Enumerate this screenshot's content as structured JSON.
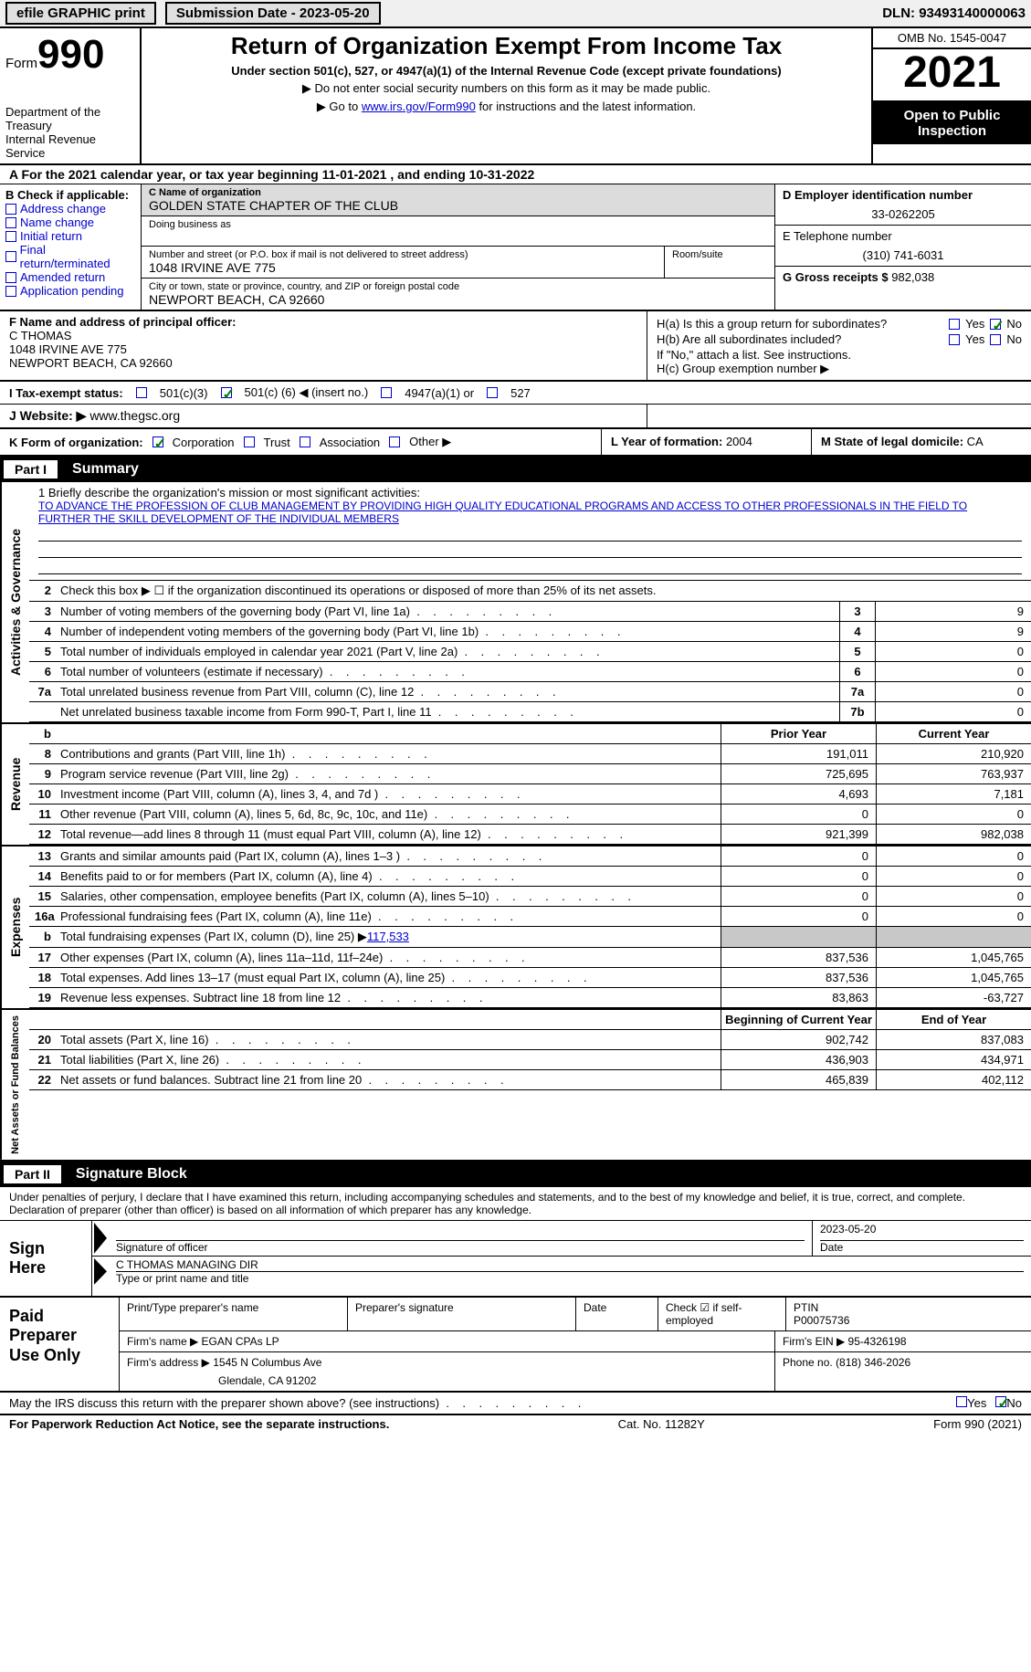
{
  "top": {
    "efile": "efile GRAPHIC print",
    "submission": "Submission Date - 2023-05-20",
    "dln": "DLN: 93493140000063"
  },
  "header": {
    "form_label": "Form",
    "form_num": "990",
    "dept": "Department of the Treasury",
    "irs": "Internal Revenue Service",
    "title": "Return of Organization Exempt From Income Tax",
    "subtitle": "Under section 501(c), 527, or 4947(a)(1) of the Internal Revenue Code (except private foundations)",
    "instr1": "▶ Do not enter social security numbers on this form as it may be made public.",
    "instr2_pre": "▶ Go to ",
    "instr2_link": "www.irs.gov/Form990",
    "instr2_post": " for instructions and the latest information.",
    "omb": "OMB No. 1545-0047",
    "year": "2021",
    "open": "Open to Public Inspection"
  },
  "line_a": "A For the 2021 calendar year, or tax year beginning 11-01-2021    , and ending 10-31-2022",
  "sec_b": {
    "title": "B Check if applicable:",
    "addr": "Address change",
    "name": "Name change",
    "initial": "Initial return",
    "final": "Final return/terminated",
    "amended": "Amended return",
    "app": "Application pending"
  },
  "sec_c": {
    "name_lbl": "C Name of organization",
    "name": "GOLDEN STATE CHAPTER OF THE CLUB",
    "dba_lbl": "Doing business as",
    "addr_lbl": "Number and street (or P.O. box if mail is not delivered to street address)",
    "addr": "1048 IRVINE AVE 775",
    "room_lbl": "Room/suite",
    "city_lbl": "City or town, state or province, country, and ZIP or foreign postal code",
    "city": "NEWPORT BEACH, CA   92660"
  },
  "sec_d": {
    "ein_lbl": "D Employer identification number",
    "ein": "33-0262205",
    "tel_lbl": "E Telephone number",
    "tel": "(310) 741-6031",
    "gross_lbl": "G Gross receipts $",
    "gross": "982,038"
  },
  "sec_f": {
    "lbl": "F Name and address of principal officer:",
    "name": "C THOMAS",
    "addr1": "1048 IRVINE AVE 775",
    "addr2": "NEWPORT BEACH, CA   92660"
  },
  "sec_h": {
    "ha": "H(a)  Is this a group return for subordinates?",
    "hb": "H(b)  Are all subordinates included?",
    "hb_note": "If \"No,\" attach a list. See instructions.",
    "hc": "H(c)  Group exemption number ▶",
    "yes": "Yes",
    "no": "No"
  },
  "tax_status": {
    "lbl": "I   Tax-exempt status:",
    "c3": "501(c)(3)",
    "c": "501(c) (",
    "cn": "6",
    "cpost": ") ◀ (insert no.)",
    "a1": "4947(a)(1) or",
    "s527": "527"
  },
  "website": {
    "lbl": "J   Website: ▶",
    "val": "www.thegsc.org"
  },
  "sec_k": {
    "lbl": "K Form of organization:",
    "corp": "Corporation",
    "trust": "Trust",
    "assoc": "Association",
    "other": "Other ▶"
  },
  "sec_l": {
    "lbl": "L Year of formation:",
    "val": "2004"
  },
  "sec_m": {
    "lbl": "M State of legal domicile:",
    "val": "CA"
  },
  "part1": {
    "num": "Part I",
    "title": "Summary"
  },
  "side": {
    "ag": "Activities & Governance",
    "rev": "Revenue",
    "exp": "Expenses",
    "na": "Net Assets or Fund Balances"
  },
  "mission": {
    "lbl": "1   Briefly describe the organization's mission or most significant activities:",
    "text": "TO ADVANCE THE PROFESSION OF CLUB MANAGEMENT BY PROVIDING HIGH QUALITY EDUCATIONAL PROGRAMS AND ACCESS TO OTHER PROFESSIONALS IN THE FIELD TO FURTHER THE SKILL DEVELOPMENT OF THE INDIVIDUAL MEMBERS"
  },
  "l2": "Check this box ▶ ☐ if the organization discontinued its operations or disposed of more than 25% of its net assets.",
  "rows_ag": [
    {
      "n": "3",
      "t": "Number of voting members of the governing body (Part VI, line 1a)",
      "box": "3",
      "v": "9"
    },
    {
      "n": "4",
      "t": "Number of independent voting members of the governing body (Part VI, line 1b)",
      "box": "4",
      "v": "9"
    },
    {
      "n": "5",
      "t": "Total number of individuals employed in calendar year 2021 (Part V, line 2a)",
      "box": "5",
      "v": "0"
    },
    {
      "n": "6",
      "t": "Total number of volunteers (estimate if necessary)",
      "box": "6",
      "v": "0"
    },
    {
      "n": "7a",
      "t": "Total unrelated business revenue from Part VIII, column (C), line 12",
      "box": "7a",
      "v": "0"
    },
    {
      "n": "",
      "t": "Net unrelated business taxable income from Form 990-T, Part I, line 11",
      "box": "7b",
      "v": "0"
    }
  ],
  "col_hdr": {
    "prior": "Prior Year",
    "current": "Current Year",
    "beg": "Beginning of Current Year",
    "end": "End of Year"
  },
  "rows_rev": [
    {
      "n": "8",
      "t": "Contributions and grants (Part VIII, line 1h)",
      "p": "191,011",
      "c": "210,920"
    },
    {
      "n": "9",
      "t": "Program service revenue (Part VIII, line 2g)",
      "p": "725,695",
      "c": "763,937"
    },
    {
      "n": "10",
      "t": "Investment income (Part VIII, column (A), lines 3, 4, and 7d )",
      "p": "4,693",
      "c": "7,181"
    },
    {
      "n": "11",
      "t": "Other revenue (Part VIII, column (A), lines 5, 6d, 8c, 9c, 10c, and 11e)",
      "p": "0",
      "c": "0"
    },
    {
      "n": "12",
      "t": "Total revenue—add lines 8 through 11 (must equal Part VIII, column (A), line 12)",
      "p": "921,399",
      "c": "982,038"
    }
  ],
  "rows_exp": [
    {
      "n": "13",
      "t": "Grants and similar amounts paid (Part IX, column (A), lines 1–3 )",
      "p": "0",
      "c": "0"
    },
    {
      "n": "14",
      "t": "Benefits paid to or for members (Part IX, column (A), line 4)",
      "p": "0",
      "c": "0"
    },
    {
      "n": "15",
      "t": "Salaries, other compensation, employee benefits (Part IX, column (A), lines 5–10)",
      "p": "0",
      "c": "0"
    },
    {
      "n": "16a",
      "t": "Professional fundraising fees (Part IX, column (A), line 11e)",
      "p": "0",
      "c": "0"
    }
  ],
  "l16b": {
    "n": "b",
    "t": "Total fundraising expenses (Part IX, column (D), line 25) ▶",
    "v": "117,533"
  },
  "rows_exp2": [
    {
      "n": "17",
      "t": "Other expenses (Part IX, column (A), lines 11a–11d, 11f–24e)",
      "p": "837,536",
      "c": "1,045,765"
    },
    {
      "n": "18",
      "t": "Total expenses. Add lines 13–17 (must equal Part IX, column (A), line 25)",
      "p": "837,536",
      "c": "1,045,765"
    },
    {
      "n": "19",
      "t": "Revenue less expenses. Subtract line 18 from line 12",
      "p": "83,863",
      "c": "-63,727"
    }
  ],
  "rows_na": [
    {
      "n": "20",
      "t": "Total assets (Part X, line 16)",
      "p": "902,742",
      "c": "837,083"
    },
    {
      "n": "21",
      "t": "Total liabilities (Part X, line 26)",
      "p": "436,903",
      "c": "434,971"
    },
    {
      "n": "22",
      "t": "Net assets or fund balances. Subtract line 21 from line 20",
      "p": "465,839",
      "c": "402,112"
    }
  ],
  "part2": {
    "num": "Part II",
    "title": "Signature Block"
  },
  "sig_intro": "Under penalties of perjury, I declare that I have examined this return, including accompanying schedules and statements, and to the best of my knowledge and belief, it is true, correct, and complete. Declaration of preparer (other than officer) is based on all information of which preparer has any knowledge.",
  "sign": {
    "here": "Sign Here",
    "sig_lbl": "Signature of officer",
    "date_lbl": "Date",
    "date": "2023-05-20",
    "name": "C THOMAS MANAGING DIR",
    "name_lbl": "Type or print name and title"
  },
  "prep": {
    "label": "Paid Preparer Use Only",
    "pt_name_lbl": "Print/Type preparer's name",
    "sig_lbl": "Preparer's signature",
    "date_lbl": "Date",
    "check_lbl": "Check ☑ if self-employed",
    "ptin_lbl": "PTIN",
    "ptin": "P00075736",
    "firm_name_lbl": "Firm's name    ▶",
    "firm_name": "EGAN CPAs LP",
    "firm_ein_lbl": "Firm's EIN ▶",
    "firm_ein": "95-4326198",
    "firm_addr_lbl": "Firm's address ▶",
    "firm_addr1": "1545 N Columbus Ave",
    "firm_addr2": "Glendale, CA   91202",
    "phone_lbl": "Phone no.",
    "phone": "(818) 346-2026"
  },
  "discuss": {
    "q": "May the IRS discuss this return with the preparer shown above? (see instructions)",
    "yes": "Yes",
    "no": "No"
  },
  "footer": {
    "left": "For Paperwork Reduction Act Notice, see the separate instructions.",
    "mid": "Cat. No. 11282Y",
    "right": "Form 990 (2021)"
  }
}
